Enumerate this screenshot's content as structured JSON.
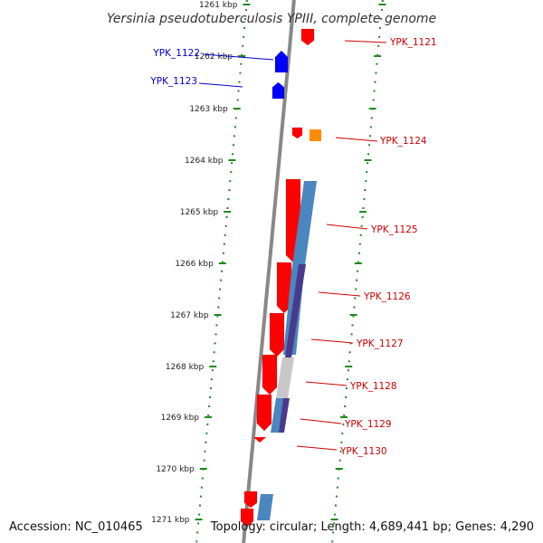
{
  "title": "Yersinia pseudotuberculosis YPIII, complete genome",
  "footer": {
    "accession": "Accession: NC_010465",
    "summary": "Topology: circular; Length: 4,689,441 bp; Genes: 4,290"
  },
  "ticks": [
    {
      "label": "1261 kbp",
      "pos_kbp": 1261
    },
    {
      "label": "1262 kbp",
      "pos_kbp": 1262
    },
    {
      "label": "1263 kbp",
      "pos_kbp": 1263
    },
    {
      "label": "1264 kbp",
      "pos_kbp": 1264
    },
    {
      "label": "1265 kbp",
      "pos_kbp": 1265
    },
    {
      "label": "1266 kbp",
      "pos_kbp": 1266
    },
    {
      "label": "1267 kbp",
      "pos_kbp": 1267
    },
    {
      "label": "1268 kbp",
      "pos_kbp": 1268
    },
    {
      "label": "1269 kbp",
      "pos_kbp": 1269
    },
    {
      "label": "1270 kbp",
      "pos_kbp": 1270
    },
    {
      "label": "1271 kbp",
      "pos_kbp": 1271
    }
  ],
  "genes": [
    {
      "label": "YPK_1121",
      "strand": "forward",
      "color": "#cc0000"
    },
    {
      "label": "YPK_1122",
      "strand": "forward",
      "color": "#0000cc"
    },
    {
      "label": "YPK_1123",
      "strand": "forward",
      "color": "#0000cc"
    },
    {
      "label": "YPK_1124",
      "strand": "reverse",
      "color": "#cc0000"
    },
    {
      "label": "YPK_1125",
      "strand": "reverse",
      "color": "#cc0000"
    },
    {
      "label": "YPK_1126",
      "strand": "reverse",
      "color": "#cc0000"
    },
    {
      "label": "YPK_1127",
      "strand": "reverse",
      "color": "#cc0000"
    },
    {
      "label": "YPK_1128",
      "strand": "reverse",
      "color": "#cc0000"
    },
    {
      "label": "YPK_1129",
      "strand": "reverse",
      "color": "#cc0000"
    },
    {
      "label": "YPK_1130",
      "strand": "reverse",
      "color": "#cc0000"
    }
  ],
  "colors": {
    "cds": "#ff0000",
    "forward_gene": "#0000ff",
    "orange_feature": "#ff8c00",
    "blast_blue": "#4a86c0",
    "blast_purple": "#4b3a8c",
    "blast_gray": "#c8c8c8",
    "ruler_dots": "#1f8a1f",
    "backbone": "#888888"
  }
}
